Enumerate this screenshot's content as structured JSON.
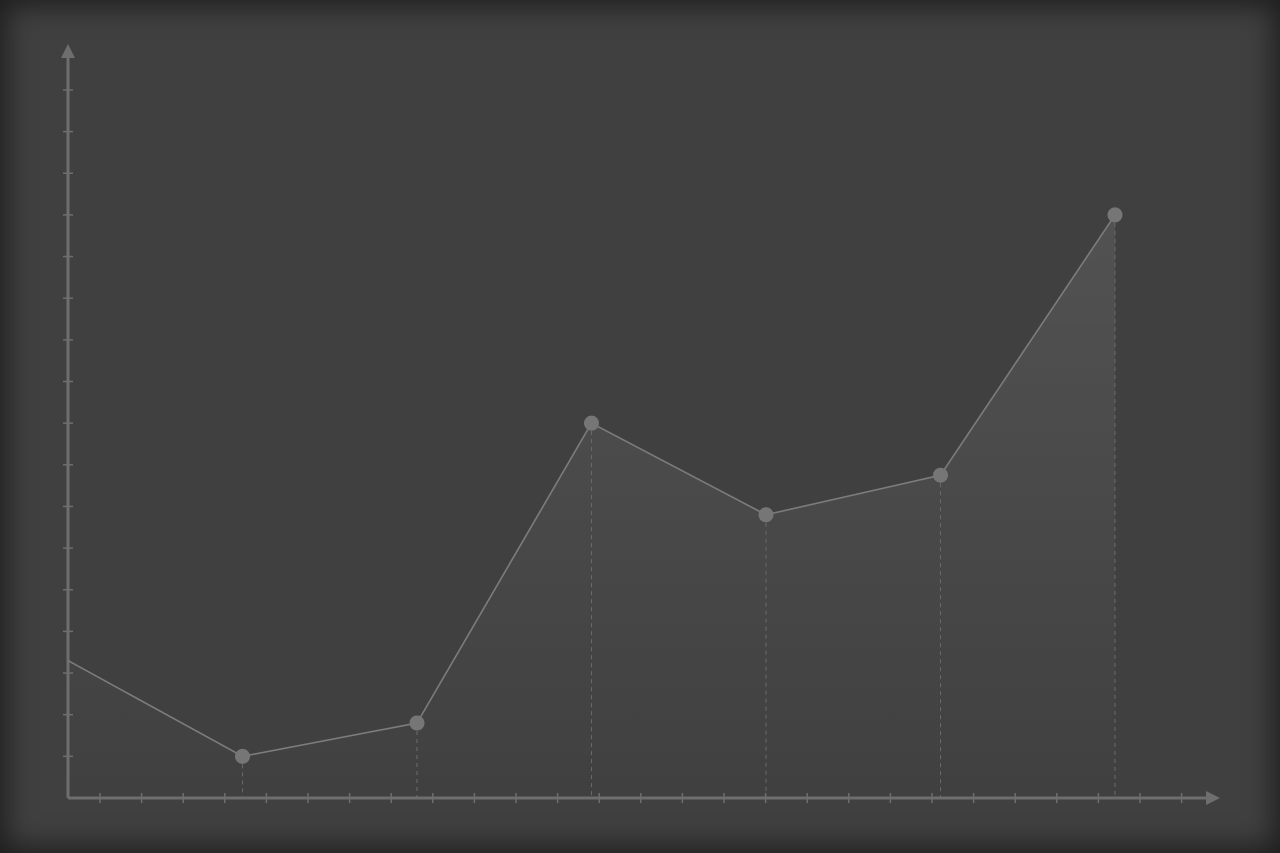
{
  "colors": {
    "background": "#404040",
    "axis": "#6e6e6e",
    "line": "#7c7c7c",
    "marker": "#767676",
    "guide": "#6a6a6a",
    "area_top": "#525252",
    "area_bottom": "#404040"
  },
  "chart_data": {
    "type": "line",
    "title": "",
    "xlabel": "",
    "ylabel": "",
    "x": [
      0,
      1,
      2,
      3,
      4,
      5,
      6
    ],
    "series": [
      {
        "values": [
          3.3,
          1.0,
          1.8,
          9.0,
          6.8,
          7.75,
          14.0
        ],
        "markers": [
          false,
          true,
          true,
          true,
          true,
          true,
          true
        ],
        "drop_lines": [
          false,
          true,
          true,
          true,
          true,
          true,
          true
        ],
        "filled": true
      }
    ],
    "xlim": [
      0,
      6.7
    ],
    "ylim": [
      0,
      18
    ],
    "x_tick_count": 27,
    "y_tick_count": 18,
    "axis_arrows": true,
    "grid": false,
    "legend": "none",
    "tick_labels": false
  }
}
